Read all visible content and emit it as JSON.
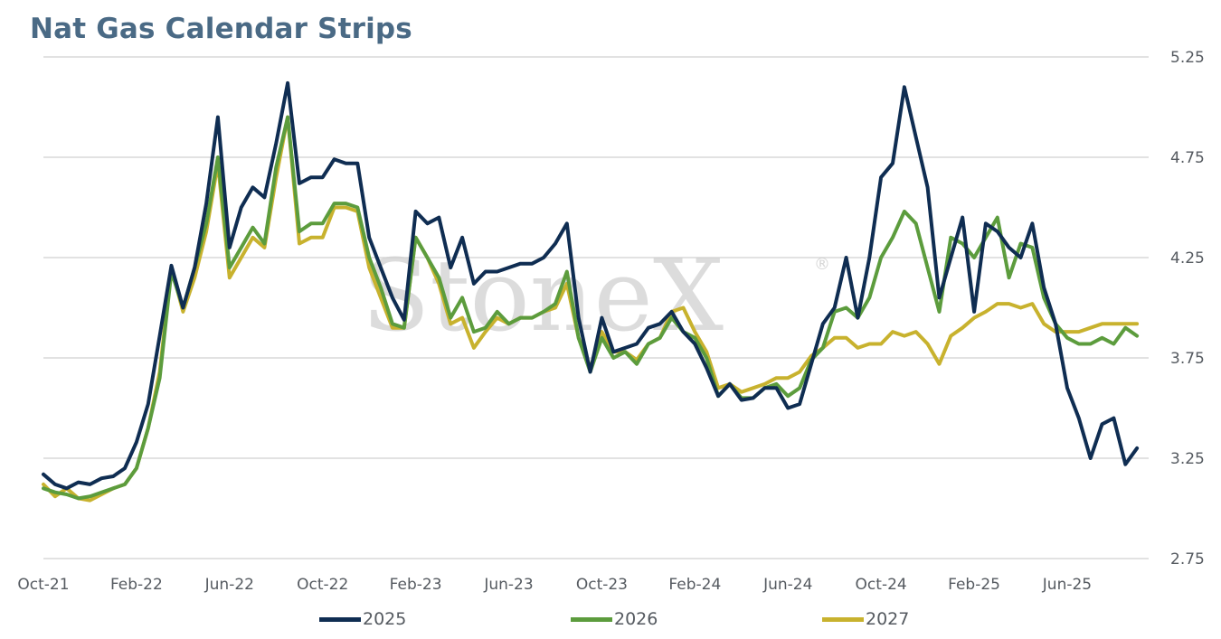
{
  "title": "Nat Gas Calendar Strips",
  "watermark": {
    "text": "StoneX",
    "mark": "®"
  },
  "colors": {
    "2025": "#0f2d52",
    "2026": "#5c9c3d",
    "2027": "#c8b22e",
    "grid": "#d0d0d0",
    "text": "#555a60"
  },
  "chart_data": {
    "type": "line",
    "title": "Nat Gas Calendar Strips",
    "xlabel": "",
    "ylabel": "",
    "x_start": "2021-10",
    "x_ticks": [
      "Oct-21",
      "Feb-22",
      "Jun-22",
      "Oct-22",
      "Feb-23",
      "Jun-23",
      "Oct-23",
      "Feb-24",
      "Jun-24",
      "Oct-24",
      "Feb-25",
      "Jun-25"
    ],
    "ylim": [
      2.75,
      5.25
    ],
    "y_ticks": [
      "2.75",
      "3.25",
      "3.75",
      "4.25",
      "4.75",
      "5.25"
    ],
    "y_axis_side": "right",
    "grid": "horizontal",
    "legend_position": "bottom",
    "x_months": [
      0,
      0.5,
      1,
      1.5,
      2,
      2.5,
      3,
      3.5,
      4,
      4.5,
      5,
      5.5,
      6,
      6.5,
      7,
      7.5,
      8,
      8.5,
      9,
      9.5,
      10,
      10.5,
      11,
      11.5,
      12,
      12.5,
      13,
      13.5,
      14,
      14.5,
      15,
      15.5,
      16,
      16.5,
      17,
      17.5,
      18,
      18.5,
      19,
      19.5,
      20,
      20.5,
      21,
      21.5,
      22,
      22.5,
      23,
      23.5,
      24,
      24.5,
      25,
      25.5,
      26,
      26.5,
      27,
      27.5,
      28,
      28.5,
      29,
      29.5,
      30,
      30.5,
      31,
      31.5,
      32,
      32.5,
      33,
      33.5,
      34,
      34.5,
      35,
      35.5,
      36,
      36.5,
      37,
      37.5,
      38,
      38.5,
      39,
      39.5,
      40,
      40.5,
      41,
      41.5,
      42,
      42.5,
      43,
      43.5,
      44,
      44.5,
      45,
      45.5,
      46,
      46.5,
      47
    ],
    "series": [
      {
        "name": "2025",
        "values": [
          3.17,
          3.12,
          3.1,
          3.13,
          3.12,
          3.15,
          3.16,
          3.2,
          3.33,
          3.52,
          3.86,
          4.21,
          4.0,
          4.2,
          4.52,
          4.95,
          4.3,
          4.5,
          4.6,
          4.55,
          4.82,
          5.12,
          4.62,
          4.65,
          4.65,
          4.74,
          4.72,
          4.72,
          4.35,
          4.2,
          4.05,
          3.94,
          4.48,
          4.42,
          4.45,
          4.2,
          4.35,
          4.12,
          4.18,
          4.18,
          4.2,
          4.22,
          4.22,
          4.25,
          4.32,
          4.42,
          3.95,
          3.68,
          3.95,
          3.78,
          3.8,
          3.82,
          3.9,
          3.92,
          3.98,
          3.88,
          3.82,
          3.7,
          3.56,
          3.62,
          3.54,
          3.55,
          3.6,
          3.6,
          3.5,
          3.52,
          3.72,
          3.92,
          4.0,
          4.25,
          3.95,
          4.25,
          4.65,
          4.72,
          5.1,
          4.85,
          4.6,
          4.05,
          4.25,
          4.45,
          3.98,
          4.42,
          4.38,
          4.3,
          4.25,
          4.42,
          4.1,
          3.92,
          3.6,
          3.45,
          3.25,
          3.42,
          3.45,
          3.22,
          3.3
        ]
      },
      {
        "name": "2026",
        "values": [
          3.1,
          3.08,
          3.07,
          3.05,
          3.06,
          3.08,
          3.1,
          3.12,
          3.2,
          3.4,
          3.65,
          4.18,
          4.0,
          4.2,
          4.42,
          4.75,
          4.2,
          4.3,
          4.4,
          4.32,
          4.7,
          4.95,
          4.38,
          4.42,
          4.42,
          4.52,
          4.52,
          4.5,
          4.25,
          4.1,
          3.92,
          3.9,
          4.35,
          4.25,
          4.15,
          3.95,
          4.05,
          3.88,
          3.9,
          3.98,
          3.92,
          3.95,
          3.95,
          3.98,
          4.02,
          4.18,
          3.85,
          3.68,
          3.85,
          3.75,
          3.78,
          3.72,
          3.82,
          3.85,
          3.95,
          3.88,
          3.85,
          3.75,
          3.56,
          3.62,
          3.55,
          3.55,
          3.6,
          3.62,
          3.56,
          3.6,
          3.74,
          3.8,
          3.98,
          4.0,
          3.95,
          4.05,
          4.25,
          4.35,
          4.48,
          4.42,
          4.2,
          3.98,
          4.35,
          4.32,
          4.25,
          4.35,
          4.45,
          4.15,
          4.32,
          4.3,
          4.05,
          3.92,
          3.85,
          3.82,
          3.82,
          3.85,
          3.82,
          3.9,
          3.86
        ]
      },
      {
        "name": "2027",
        "values": [
          3.12,
          3.06,
          3.1,
          3.05,
          3.04,
          3.07,
          3.1,
          3.12,
          3.2,
          3.4,
          3.68,
          4.2,
          3.98,
          4.15,
          4.38,
          4.72,
          4.15,
          4.25,
          4.35,
          4.3,
          4.65,
          4.95,
          4.32,
          4.35,
          4.35,
          4.5,
          4.5,
          4.48,
          4.2,
          4.05,
          3.9,
          3.9,
          4.35,
          4.25,
          4.12,
          3.92,
          3.95,
          3.8,
          3.88,
          3.95,
          3.92,
          3.95,
          3.95,
          3.98,
          4.0,
          4.12,
          3.85,
          3.7,
          3.88,
          3.78,
          3.78,
          3.74,
          3.82,
          3.85,
          3.98,
          4.0,
          3.88,
          3.78,
          3.6,
          3.62,
          3.58,
          3.6,
          3.62,
          3.65,
          3.65,
          3.68,
          3.76,
          3.8,
          3.85,
          3.85,
          3.8,
          3.82,
          3.82,
          3.88,
          3.86,
          3.88,
          3.82,
          3.72,
          3.86,
          3.9,
          3.95,
          3.98,
          4.02,
          4.02,
          4.0,
          4.02,
          3.92,
          3.88,
          3.88,
          3.88,
          3.9,
          3.92,
          3.92,
          3.92,
          3.92
        ]
      }
    ]
  }
}
